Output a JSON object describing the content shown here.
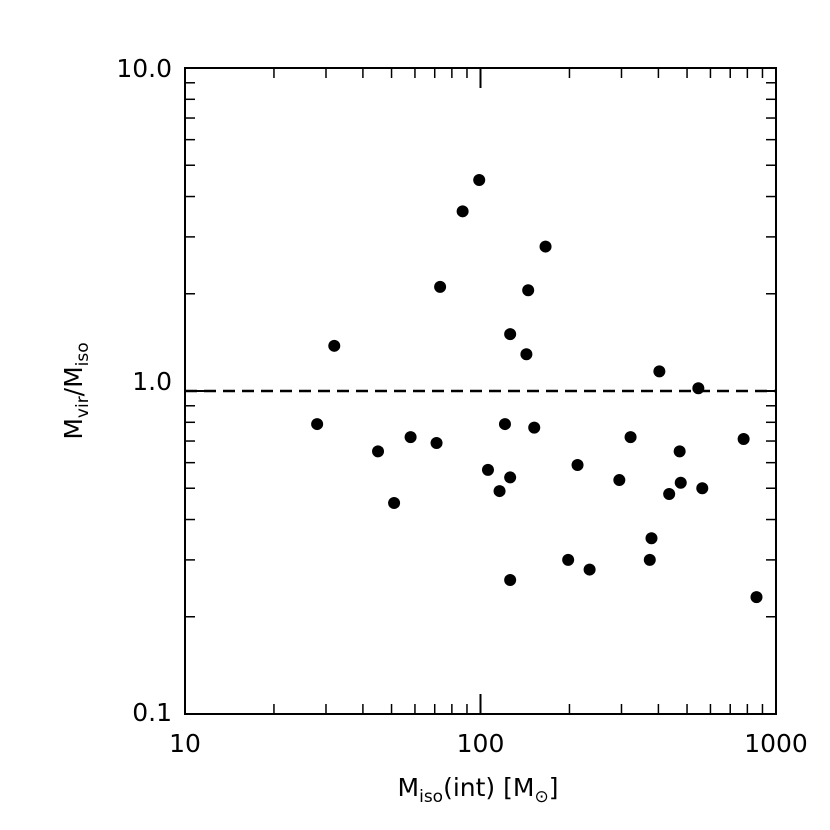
{
  "chart_data": {
    "type": "scatter",
    "title": "",
    "x_scale": "log",
    "y_scale": "log",
    "xlim": [
      10,
      1000
    ],
    "ylim": [
      0.1,
      10
    ],
    "xlabel": {
      "main": "M",
      "sub": "iso",
      "rest": "(int)  [M",
      "symbol": "⊙",
      "close": "]"
    },
    "ylabel": {
      "main1": "M",
      "sub1": "vir",
      "slash": "/M",
      "sub2": "iso"
    },
    "x_ticks": [
      10,
      100,
      1000
    ],
    "x_tick_labels": [
      "10",
      "100",
      "1000"
    ],
    "y_ticks": [
      0.1,
      1.0,
      10.0
    ],
    "y_tick_labels": [
      "0.1",
      "1.0",
      "10.0"
    ],
    "reference_line": {
      "y": 1.0,
      "style": "dashed"
    },
    "grid": false,
    "legend": "none",
    "marker_color": "#000000",
    "points": [
      {
        "x": 28,
        "y": 0.79
      },
      {
        "x": 32,
        "y": 1.38
      },
      {
        "x": 45,
        "y": 0.65
      },
      {
        "x": 51,
        "y": 0.45
      },
      {
        "x": 58,
        "y": 0.72
      },
      {
        "x": 71,
        "y": 0.69
      },
      {
        "x": 73,
        "y": 2.1
      },
      {
        "x": 87,
        "y": 3.6
      },
      {
        "x": 99,
        "y": 4.5
      },
      {
        "x": 106,
        "y": 0.57
      },
      {
        "x": 116,
        "y": 0.49
      },
      {
        "x": 121,
        "y": 0.79
      },
      {
        "x": 126,
        "y": 1.5
      },
      {
        "x": 126,
        "y": 0.54
      },
      {
        "x": 126,
        "y": 0.26
      },
      {
        "x": 143,
        "y": 1.3
      },
      {
        "x": 145,
        "y": 2.05
      },
      {
        "x": 152,
        "y": 0.77
      },
      {
        "x": 166,
        "y": 2.8
      },
      {
        "x": 198,
        "y": 0.3
      },
      {
        "x": 213,
        "y": 0.59
      },
      {
        "x": 234,
        "y": 0.28
      },
      {
        "x": 295,
        "y": 0.53
      },
      {
        "x": 322,
        "y": 0.72
      },
      {
        "x": 374,
        "y": 0.3
      },
      {
        "x": 379,
        "y": 0.35
      },
      {
        "x": 403,
        "y": 1.15
      },
      {
        "x": 435,
        "y": 0.48
      },
      {
        "x": 472,
        "y": 0.65
      },
      {
        "x": 476,
        "y": 0.52
      },
      {
        "x": 546,
        "y": 1.02
      },
      {
        "x": 563,
        "y": 0.5
      },
      {
        "x": 777,
        "y": 0.71
      },
      {
        "x": 859,
        "y": 0.23
      }
    ]
  }
}
